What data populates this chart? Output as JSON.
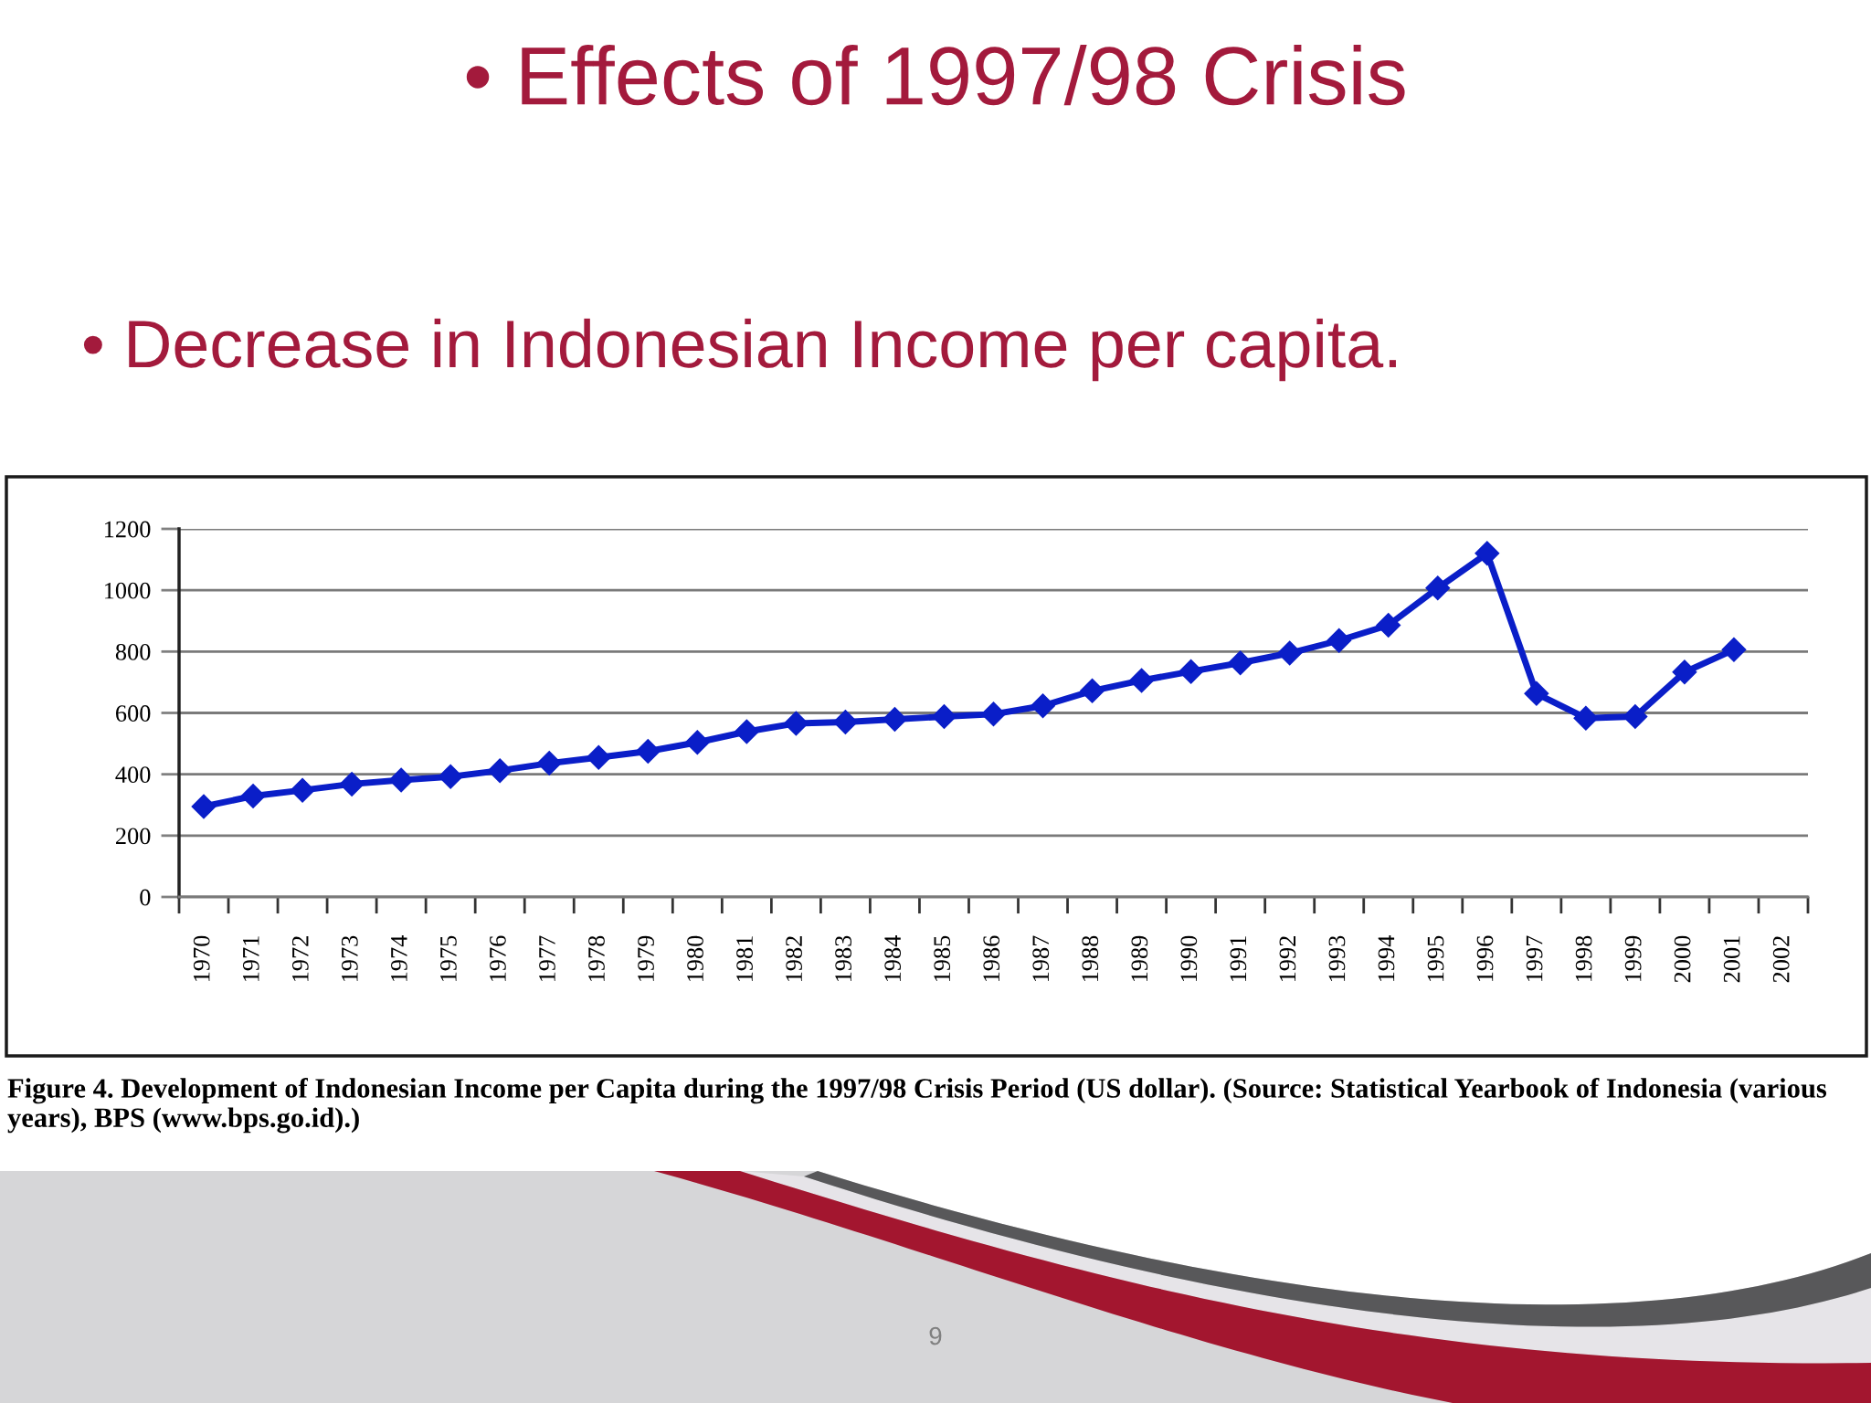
{
  "chart_data": {
    "type": "line",
    "title": "• Effects of 1997/98 Crisis",
    "subtitle": "• Decrease in Indonesian Income per capita.",
    "categories": [
      "1970",
      "1971",
      "1972",
      "1973",
      "1974",
      "1975",
      "1976",
      "1977",
      "1978",
      "1979",
      "1980",
      "1981",
      "1982",
      "1983",
      "1984",
      "1985",
      "1986",
      "1987",
      "1988",
      "1989",
      "1990",
      "1991",
      "1992",
      "1993",
      "1994",
      "1995",
      "1996",
      "1997",
      "1998",
      "1999",
      "2000",
      "2001",
      "2002"
    ],
    "values": [
      295,
      329,
      348,
      368,
      381,
      392,
      412,
      436,
      455,
      475,
      504,
      539,
      566,
      570,
      579,
      588,
      596,
      623,
      672,
      706,
      735,
      763,
      795,
      836,
      886,
      1007,
      1120,
      663,
      583,
      588,
      733,
      806,
      null
    ],
    "color": "#0a1ec8",
    "marker": "diamond",
    "line_style": "solid",
    "grid": "y",
    "ylim": [
      0,
      1200
    ],
    "yticks": [
      0,
      200,
      400,
      600,
      800,
      1000,
      1200
    ],
    "annotations": [
      "Figure 4. Development of Indonesian Income per Capita during the 1997/98 Crisis Period (US dollar). (Source: Statistical Yearbook of Indonesia (various years), BPS (www.bps.go.id).)",
      "9"
    ]
  }
}
